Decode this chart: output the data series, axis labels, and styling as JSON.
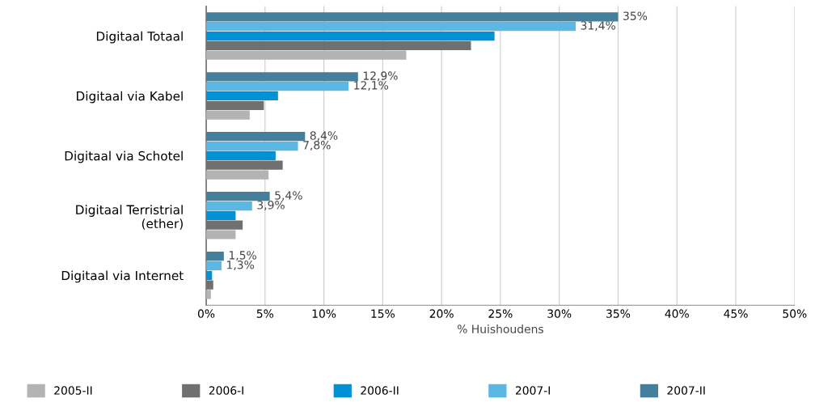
{
  "chart_data": {
    "type": "bar",
    "orientation": "horizontal",
    "xlabel": "% Huishoudens",
    "categories": [
      "Digitaal Totaal",
      "Digitaal via Kabel",
      "Digitaal via Schotel",
      "Digitaal Terristrial\n(ether)",
      "Digitaal via Internet"
    ],
    "series": [
      {
        "name": "2005-II",
        "color": "#b3b3b3",
        "values": [
          17.0,
          3.7,
          5.3,
          2.5,
          0.4
        ]
      },
      {
        "name": "2006-I",
        "color": "#707070",
        "values": [
          22.5,
          4.9,
          6.5,
          3.1,
          0.6
        ]
      },
      {
        "name": "2006-II",
        "color": "#0092d5",
        "values": [
          24.5,
          6.1,
          5.9,
          2.5,
          0.5
        ]
      },
      {
        "name": "2007-I",
        "color": "#5bb8e2",
        "values": [
          31.4,
          12.1,
          7.8,
          3.9,
          1.3
        ],
        "value_labels": [
          "31,4%",
          "12,1%",
          "7,8%",
          "3,9%",
          "1,3%"
        ]
      },
      {
        "name": "2007-II",
        "color": "#44809c",
        "values": [
          35,
          12.9,
          8.4,
          5.4,
          1.5
        ],
        "value_labels": [
          "35%",
          "12,9%",
          "8,4%",
          "5,4%",
          "1,5%"
        ]
      }
    ],
    "xlim": [
      0,
      50
    ],
    "xticks": [
      {
        "value": 0,
        "label": "0%"
      },
      {
        "value": 5,
        "label": "5%"
      },
      {
        "value": 10,
        "label": "10%"
      },
      {
        "value": 15,
        "label": "15%"
      },
      {
        "value": 20,
        "label": "20%"
      },
      {
        "value": 25,
        "label": "25%"
      },
      {
        "value": 30,
        "label": "30%"
      },
      {
        "value": 35,
        "label": "35%"
      },
      {
        "value": 40,
        "label": "40%"
      },
      {
        "value": 45,
        "label": "45%"
      },
      {
        "value": 50,
        "label": "50%"
      }
    ],
    "grid": "x",
    "legend": "bottom"
  }
}
